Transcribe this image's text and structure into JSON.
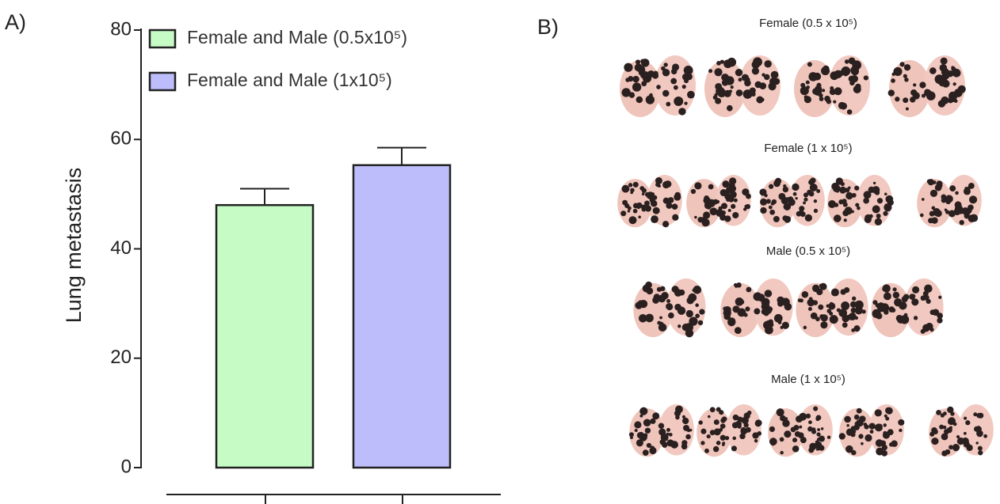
{
  "panel_a": {
    "label": "A)"
  },
  "panel_b": {
    "label": "B)",
    "groups": [
      "Female (0.5 x 10⁵)",
      "Female (1 x 10⁵)",
      "Male (0.5 x 10⁵)",
      "Male (1 x 10⁵)"
    ]
  },
  "chart_data": {
    "type": "bar",
    "y_label": "Lung metastasis",
    "categories": [
      null,
      null
    ],
    "series": [
      {
        "name": "Female and Male (0.5x10⁵)",
        "color": "#c6fbc6",
        "values": [
          48,
          null
        ],
        "errors": [
          3,
          null
        ]
      },
      {
        "name": "Female and Male (1x10⁵)",
        "color": "#bdbdfc",
        "values": [
          null,
          55.3
        ],
        "errors": [
          null,
          3.2
        ]
      }
    ],
    "ylim": [
      0,
      80
    ],
    "yticks": [
      0,
      20,
      40,
      60,
      80
    ]
  }
}
